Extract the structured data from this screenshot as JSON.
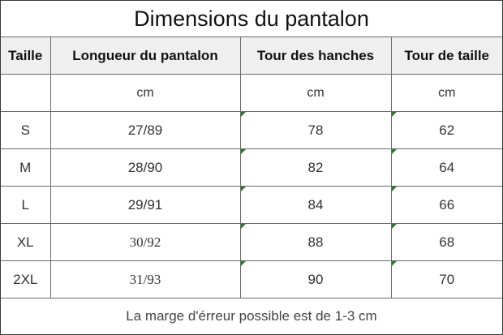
{
  "title": "Dimensions du pantalon",
  "columns": [
    "Taille",
    "Longueur du pantalon",
    "Tour des hanches",
    "Tour de taille"
  ],
  "units": [
    "",
    "cm",
    "cm",
    "cm"
  ],
  "rows": [
    {
      "size": "S",
      "length": "27/89",
      "hips": "78",
      "waist": "62"
    },
    {
      "size": "M",
      "length": "28/90",
      "hips": "82",
      "waist": "64"
    },
    {
      "size": "L",
      "length": "29/91",
      "hips": "84",
      "waist": "66"
    },
    {
      "size": "XL",
      "length": "30/92",
      "hips": "88",
      "waist": "68"
    },
    {
      "size": "2XL",
      "length": "31/93",
      "hips": "90",
      "waist": "70"
    }
  ],
  "note": "La marge d'érreur possible est de 1-3 cm",
  "colors": {
    "header_bg": "#efefef",
    "cell_marker": "#2d7a2d",
    "border": "#6a6a6a"
  }
}
